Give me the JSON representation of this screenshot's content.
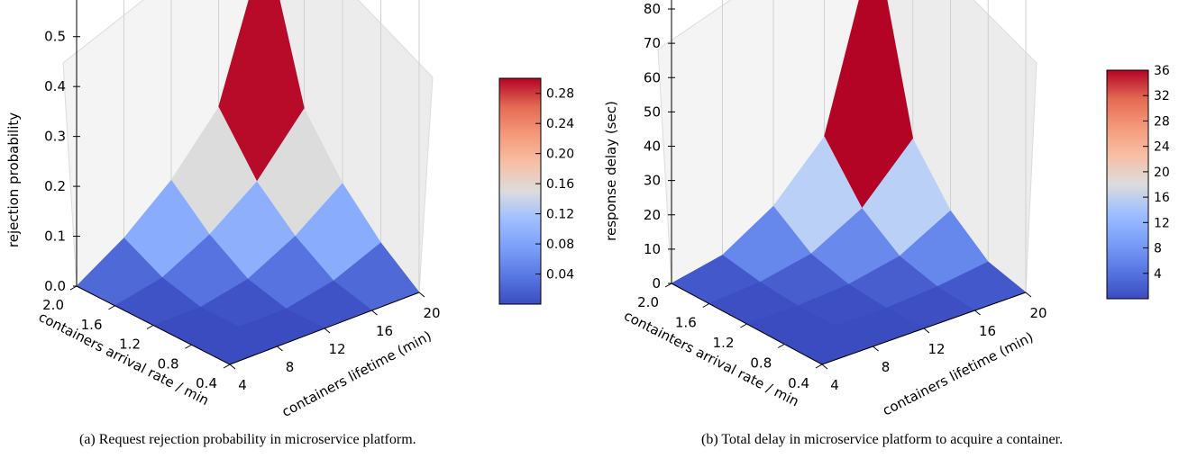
{
  "captions": {
    "a": "(a) Request rejection probability in microservice platform.",
    "b": "(b) Total delay in microservice platform to acquire a container."
  },
  "chart_data": [
    {
      "type": "surface3d",
      "zlabel": "rejection probability",
      "xlabel": "containers lifetime (min)",
      "ylabel": "containers arrival rate / min",
      "x": [
        4,
        8,
        12,
        16,
        20
      ],
      "y": [
        0.4,
        0.8,
        1.2,
        1.6,
        2.0
      ],
      "z": [
        [
          0.0,
          0.0,
          0.0,
          0.0,
          0.0
        ],
        [
          0.0,
          0.0,
          0.0,
          0.02,
          0.06
        ],
        [
          0.0,
          0.0,
          0.02,
          0.07,
          0.14
        ],
        [
          0.0,
          0.02,
          0.07,
          0.14,
          0.25
        ],
        [
          0.0,
          0.06,
          0.14,
          0.25,
          0.55
        ]
      ],
      "x_ticks": [
        "4",
        "8",
        "12",
        "16",
        "20"
      ],
      "y_ticks": [
        "0.4",
        "0.8",
        "1.2",
        "1.6",
        "2.0"
      ],
      "z_ticks": [
        "0.0",
        "0.1",
        "0.2",
        "0.3",
        "0.4",
        "0.5"
      ],
      "zlim": [
        0,
        0.55
      ],
      "colorbar": {
        "ticks": [
          "0.04",
          "0.08",
          "0.12",
          "0.16",
          "0.20",
          "0.24",
          "0.28"
        ],
        "range": [
          0,
          0.3
        ]
      },
      "colormap": "coolwarm",
      "grid": true
    },
    {
      "type": "surface3d",
      "zlabel": "response delay (sec)",
      "xlabel": "containers lifetime (min)",
      "ylabel": "containters arrival rate / min",
      "x": [
        4,
        8,
        12,
        16,
        20
      ],
      "y": [
        0.4,
        0.8,
        1.2,
        1.6,
        2.0
      ],
      "z": [
        [
          0,
          0,
          0,
          0,
          0
        ],
        [
          0,
          0,
          0,
          1,
          3
        ],
        [
          0,
          0,
          1,
          4,
          12
        ],
        [
          0,
          1,
          4,
          12,
          27
        ],
        [
          0,
          3,
          12,
          27,
          80
        ]
      ],
      "x_ticks": [
        "4",
        "8",
        "12",
        "16",
        "20"
      ],
      "y_ticks": [
        "0.4",
        "0.8",
        "1.2",
        "1.6",
        "2.0"
      ],
      "z_ticks": [
        "0",
        "10",
        "20",
        "30",
        "40",
        "50",
        "60",
        "70",
        "80"
      ],
      "zlim": [
        0,
        80
      ],
      "colorbar": {
        "ticks": [
          "4",
          "8",
          "12",
          "16",
          "20",
          "24",
          "28",
          "32",
          "36"
        ],
        "range": [
          0,
          36
        ]
      },
      "colormap": "coolwarm",
      "grid": true
    }
  ]
}
